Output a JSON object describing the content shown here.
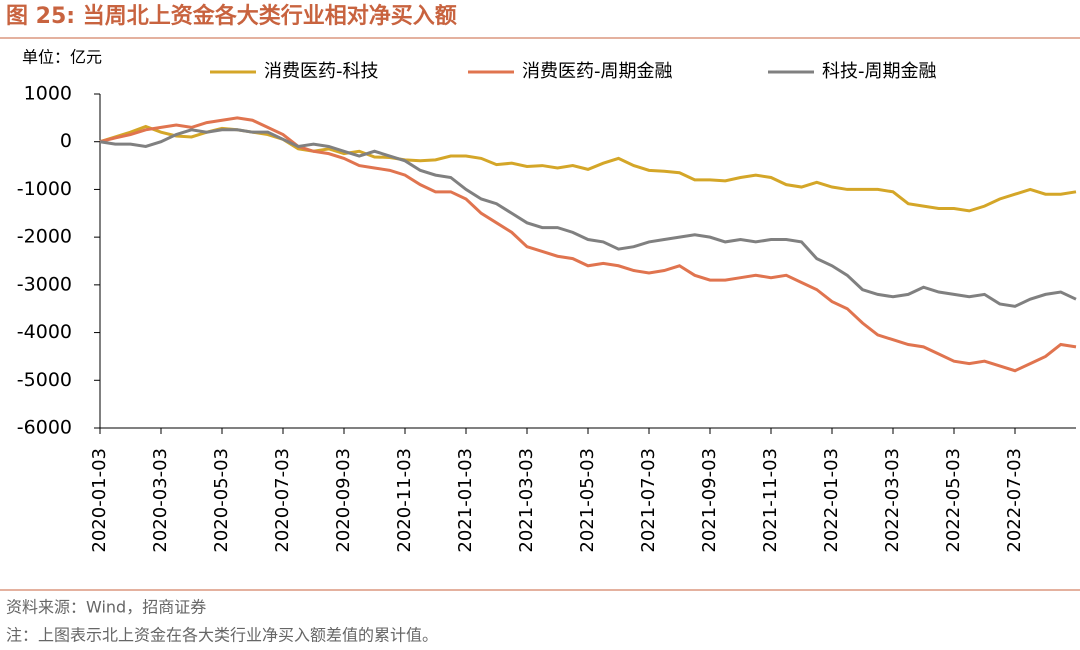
{
  "chart_data": {
    "type": "line",
    "title": "图 25:  当周北上资金各大类行业相对净买入额",
    "y_label": "单位：亿元",
    "source": "资料来源：Wind，招商证券",
    "note": "注：上图表示北上资金在各大类行业净买入额差值的累计值。",
    "categories": [
      "2020-01-03",
      null,
      null,
      null,
      "2020-03-03",
      null,
      null,
      null,
      "2020-05-03",
      null,
      null,
      null,
      "2020-07-03",
      null,
      null,
      null,
      "2020-09-03",
      null,
      null,
      null,
      "2020-11-03",
      null,
      null,
      null,
      "2021-01-03",
      null,
      null,
      null,
      "2021-03-03",
      null,
      null,
      null,
      "2021-05-03",
      null,
      null,
      null,
      "2021-07-03",
      null,
      null,
      null,
      "2021-09-03",
      null,
      null,
      null,
      "2021-11-03",
      null,
      null,
      null,
      "2022-01-03",
      null,
      null,
      null,
      "2022-03-03",
      null,
      null,
      null,
      "2022-05-03",
      null,
      null,
      null,
      "2022-07-03",
      null,
      null,
      null,
      null
    ],
    "series": [
      {
        "name": "消费医药-科技",
        "color": "#d4a628",
        "values": [
          0,
          100,
          200,
          320,
          200,
          120,
          100,
          200,
          280,
          250,
          200,
          150,
          50,
          -150,
          -200,
          -150,
          -250,
          -200,
          -320,
          -330,
          -380,
          -400,
          -380,
          -300,
          -300,
          -350,
          -480,
          -450,
          -520,
          -500,
          -550,
          -500,
          -580,
          -450,
          -350,
          -500,
          -600,
          -620,
          -650,
          -800,
          -800,
          -820,
          -750,
          -700,
          -750,
          -900,
          -950,
          -850,
          -950,
          -1000,
          -1000,
          -1000,
          -1050,
          -1300,
          -1350,
          -1400,
          -1400,
          -1450,
          -1350,
          -1200,
          -1100,
          -1000,
          -1100,
          -1100,
          -1050
        ]
      },
      {
        "name": "消费医药-周期金融",
        "color": "#e0744f",
        "values": [
          0,
          80,
          150,
          250,
          300,
          350,
          300,
          400,
          450,
          500,
          450,
          300,
          150,
          -100,
          -200,
          -250,
          -350,
          -500,
          -550,
          -600,
          -700,
          -900,
          -1050,
          -1050,
          -1200,
          -1500,
          -1700,
          -1900,
          -2200,
          -2300,
          -2400,
          -2450,
          -2600,
          -2550,
          -2600,
          -2700,
          -2750,
          -2700,
          -2600,
          -2800,
          -2900,
          -2900,
          -2850,
          -2800,
          -2850,
          -2800,
          -2950,
          -3100,
          -3350,
          -3500,
          -3800,
          -4050,
          -4150,
          -4250,
          -4300,
          -4450,
          -4600,
          -4650,
          -4600,
          -4700,
          -4800,
          -4650,
          -4500,
          -4250,
          -4300
        ]
      },
      {
        "name": "科技-周期金融",
        "color": "#808080",
        "values": [
          0,
          -50,
          -50,
          -100,
          0,
          150,
          250,
          200,
          250,
          250,
          200,
          200,
          50,
          -100,
          -50,
          -100,
          -200,
          -300,
          -200,
          -300,
          -400,
          -600,
          -700,
          -750,
          -1000,
          -1200,
          -1300,
          -1500,
          -1700,
          -1800,
          -1800,
          -1900,
          -2050,
          -2100,
          -2250,
          -2200,
          -2100,
          -2050,
          -2000,
          -1950,
          -2000,
          -2100,
          -2050,
          -2100,
          -2050,
          -2050,
          -2100,
          -2450,
          -2600,
          -2800,
          -3100,
          -3200,
          -3250,
          -3200,
          -3050,
          -3150,
          -3200,
          -3250,
          -3200,
          -3400,
          -3450,
          -3300,
          -3200,
          -3150,
          -3300
        ]
      }
    ],
    "ylim": [
      -6000,
      1000
    ],
    "yticks": [
      1000,
      0,
      -1000,
      -2000,
      -3000,
      -4000,
      -5000,
      -6000
    ],
    "grid": false
  }
}
